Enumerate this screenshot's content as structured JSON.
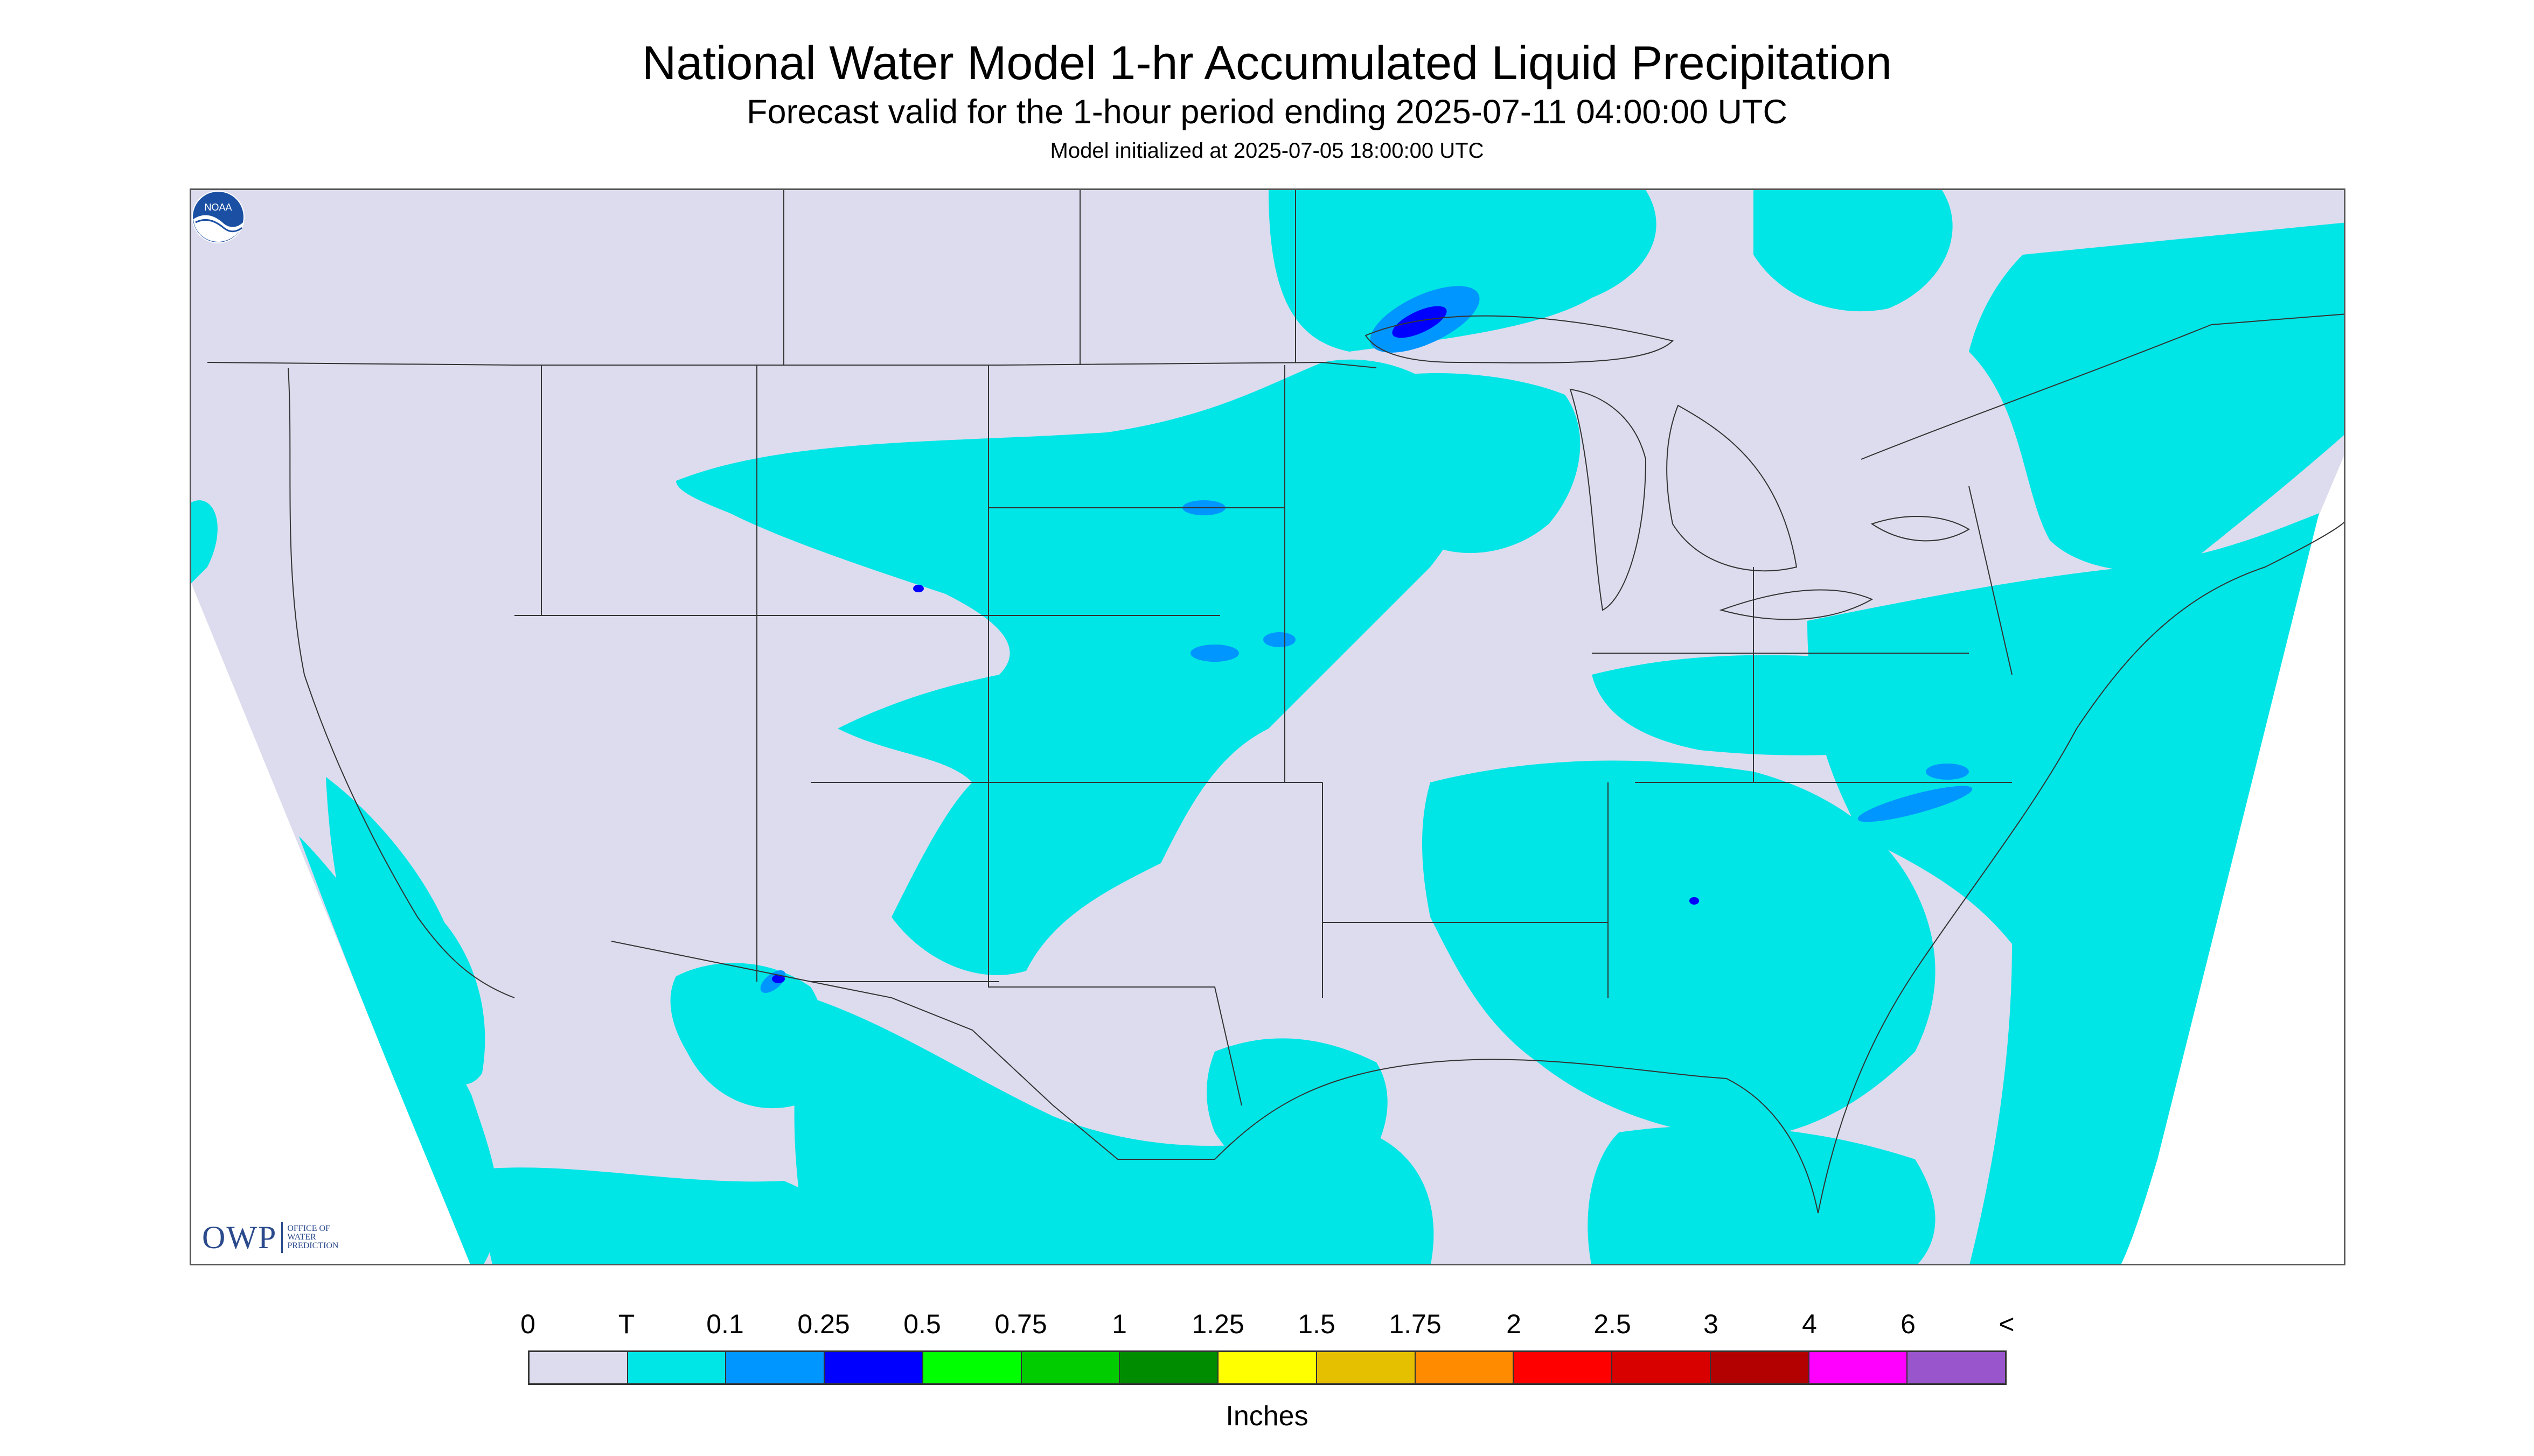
{
  "header": {
    "title": "National Water Model 1-hr Accumulated Liquid Precipitation",
    "subtitle": "Forecast valid for the 1-hour period ending 2025-07-11 04:00:00 UTC",
    "init_line": "Model initialized at 2025-07-05 18:00:00 UTC"
  },
  "map": {
    "region": "Continental United States",
    "background_color": "#dcdcee",
    "outside_color": "#ffffff",
    "trace_color": "#00e5e5",
    "moderate_color": "#0096ff",
    "heavy_color": "#0000ff",
    "border_color": "#333333"
  },
  "logos": {
    "owp_text": "OWP",
    "owp_lines": [
      "OFFICE OF",
      "WATER",
      "PREDICTION"
    ],
    "noaa_text": "NOAA"
  },
  "legend": {
    "tick_labels": [
      "0",
      "T",
      "0.1",
      "0.25",
      "0.5",
      "0.75",
      "1",
      "1.25",
      "1.5",
      "1.75",
      "2",
      "2.5",
      "3",
      "4",
      "6",
      "<"
    ],
    "colors": [
      "#dcdcee",
      "#00e5e5",
      "#0096ff",
      "#0000ff",
      "#00ff00",
      "#00cc00",
      "#008c00",
      "#ffff00",
      "#e5c000",
      "#ff8c00",
      "#ff0000",
      "#d90000",
      "#b30000",
      "#ff00ff",
      "#9955cc"
    ],
    "units": "Inches"
  }
}
